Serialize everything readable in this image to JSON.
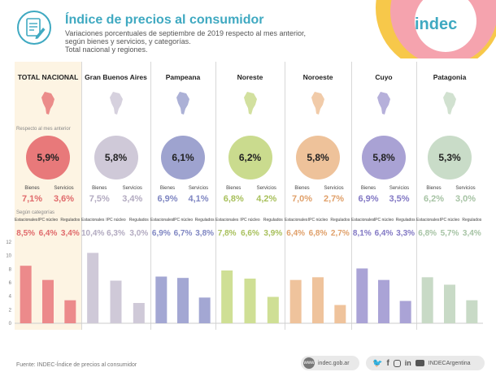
{
  "header": {
    "title": "Índice de precios al consumidor",
    "subtitle_lines": [
      "Variaciones porcentuales de septiembre de 2019 respecto al mes anterior,",
      "según bienes y servicios, y categorías.",
      "Total nacional y regiones."
    ],
    "logo_text": "indec"
  },
  "section_labels": {
    "monthly": "Respecto al mes anterior",
    "categories": "Según categorías"
  },
  "labels": {
    "bienes": "Bienes",
    "servicios": "Servicios",
    "estacionales": "Estacionales",
    "ipc_nucleo": "IPC núcleo",
    "regulados": "Regulados"
  },
  "regions": [
    {
      "name": "TOTAL NACIONAL",
      "total": "5,9%",
      "bienes": "7,1%",
      "servicios": "3,6%",
      "estacionales": "8,5%",
      "nucleo": "6,4%",
      "regulados": "3,4%",
      "color": "#e8797a",
      "bar": "#ec8a8b",
      "bg": "#fdf4e3",
      "text": "#e06a6b"
    },
    {
      "name": "Gran Buenos Aires",
      "total": "5,8%",
      "bienes": "7,5%",
      "servicios": "3,4%",
      "estacionales": "10,4%",
      "nucleo": "6,3%",
      "regulados": "3,0%",
      "color": "#cfc9d8",
      "bar": "#cfc9d8",
      "bg": "#ffffff",
      "text": "#b2aac0"
    },
    {
      "name": "Pampeana",
      "total": "6,1%",
      "bienes": "6,9%",
      "servicios": "4,1%",
      "estacionales": "6,9%",
      "nucleo": "6,7%",
      "regulados": "3,8%",
      "color": "#9ea3cf",
      "bar": "#a3a7d3",
      "bg": "#ffffff",
      "text": "#7f86c2"
    },
    {
      "name": "Noreste",
      "total": "6,2%",
      "bienes": "6,8%",
      "servicios": "4,2%",
      "estacionales": "7,8%",
      "nucleo": "6,6%",
      "regulados": "3,9%",
      "color": "#cadb8e",
      "bar": "#cfdf95",
      "bg": "#ffffff",
      "text": "#a8c05c"
    },
    {
      "name": "Noroeste",
      "total": "5,8%",
      "bienes": "7,0%",
      "servicios": "2,7%",
      "estacionales": "6,4%",
      "nucleo": "6,8%",
      "regulados": "2,7%",
      "color": "#eec29a",
      "bar": "#efc39c",
      "bg": "#ffffff",
      "text": "#e0a06a"
    },
    {
      "name": "Cuyo",
      "total": "5,8%",
      "bienes": "6,9%",
      "servicios": "3,5%",
      "estacionales": "8,1%",
      "nucleo": "6,4%",
      "regulados": "3,3%",
      "color": "#a9a2d4",
      "bar": "#aaa3d6",
      "bg": "#ffffff",
      "text": "#8278c4"
    },
    {
      "name": "Patagonia",
      "total": "5,3%",
      "bienes": "6,2%",
      "servicios": "3,0%",
      "estacionales": "6,8%",
      "nucleo": "5,7%",
      "regulados": "3,4%",
      "color": "#c9dcc8",
      "bar": "#c8dac6",
      "bg": "#ffffff",
      "text": "#a6c3a4"
    }
  ],
  "chart_data": {
    "type": "bar",
    "categories": [
      "Estacionales",
      "IPC núcleo",
      "Regulados"
    ],
    "groups": [
      "TOTAL NACIONAL",
      "Gran Buenos Aires",
      "Pampeana",
      "Noreste",
      "Noroeste",
      "Cuyo",
      "Patagonia"
    ],
    "series": [
      {
        "name": "TOTAL NACIONAL",
        "values": [
          8.5,
          6.4,
          3.4
        ]
      },
      {
        "name": "Gran Buenos Aires",
        "values": [
          10.4,
          6.3,
          3.0
        ]
      },
      {
        "name": "Pampeana",
        "values": [
          6.9,
          6.7,
          3.8
        ]
      },
      {
        "name": "Noreste",
        "values": [
          7.8,
          6.6,
          3.9
        ]
      },
      {
        "name": "Noroeste",
        "values": [
          6.4,
          6.8,
          2.7
        ]
      },
      {
        "name": "Cuyo",
        "values": [
          8.1,
          6.4,
          3.3
        ]
      },
      {
        "name": "Patagonia",
        "values": [
          6.8,
          5.7,
          3.4
        ]
      }
    ],
    "ylim": [
      0,
      12
    ],
    "yticks": [
      "0",
      "2",
      "4",
      "6",
      "8",
      "10",
      "12"
    ],
    "grid": false
  },
  "footer": {
    "source": "Fuente: INDEC-Índice de precios al consumidor",
    "website": "indec.gob.ar",
    "handle": "INDECArgentina"
  }
}
